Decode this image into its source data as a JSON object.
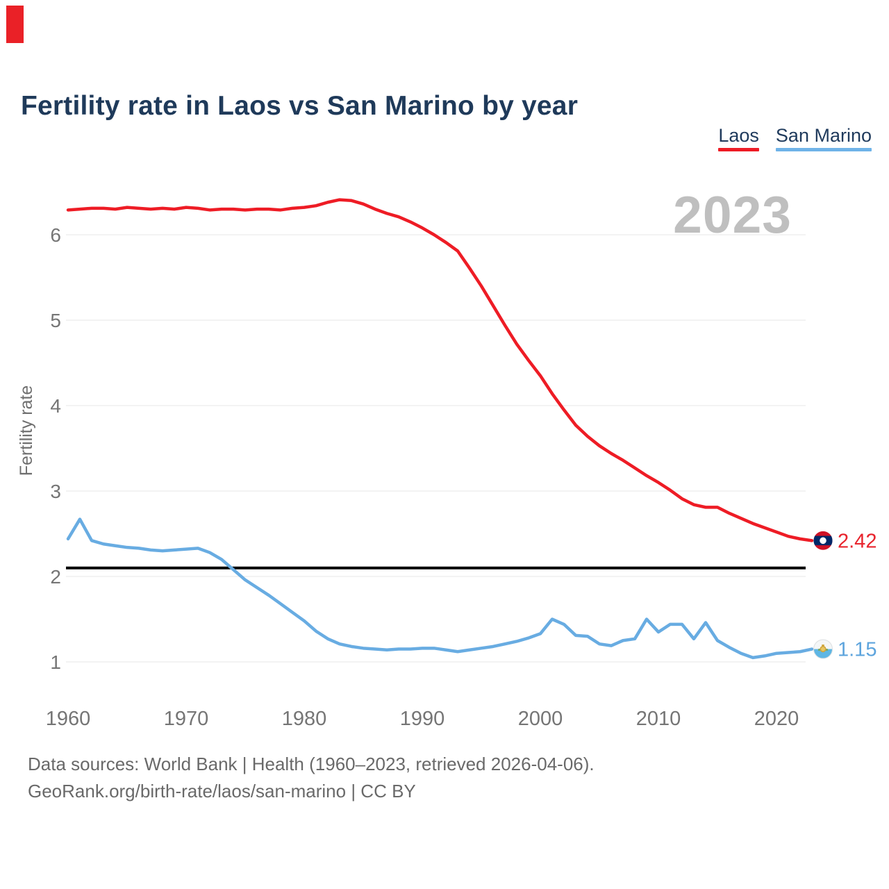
{
  "page": {
    "title": "Fertility rate in Laos vs San Marino by year",
    "watermark_year": "2023",
    "marker_color": "#ea2127"
  },
  "legend": {
    "items": [
      {
        "label": "Laos",
        "color": "#ee1c25"
      },
      {
        "label": "San Marino",
        "color": "#6fb3e8"
      }
    ]
  },
  "footer": {
    "line1": "Data sources: World Bank | Health (1960–2023, retrieved 2026-04-06).",
    "line2": "GeoRank.org/birth-rate/laos/san-marino | CC BY"
  },
  "chart_data": {
    "type": "line",
    "title": "Fertility rate in Laos vs San Marino by year",
    "ylabel": "Fertility rate",
    "xlabel": "",
    "x": [
      1960,
      1961,
      1962,
      1963,
      1964,
      1965,
      1966,
      1967,
      1968,
      1969,
      1970,
      1971,
      1972,
      1973,
      1974,
      1975,
      1976,
      1977,
      1978,
      1979,
      1980,
      1981,
      1982,
      1983,
      1984,
      1985,
      1986,
      1987,
      1988,
      1989,
      1990,
      1991,
      1992,
      1993,
      1994,
      1995,
      1996,
      1997,
      1998,
      1999,
      2000,
      2001,
      2002,
      2003,
      2004,
      2005,
      2006,
      2007,
      2008,
      2009,
      2010,
      2011,
      2012,
      2013,
      2014,
      2015,
      2016,
      2017,
      2018,
      2019,
      2020,
      2021,
      2022,
      2023
    ],
    "series": [
      {
        "name": "Laos",
        "color": "#ee1c25",
        "label_color": "#e8242d",
        "end_label": "2.42",
        "values": [
          6.29,
          6.3,
          6.31,
          6.31,
          6.3,
          6.32,
          6.31,
          6.3,
          6.31,
          6.3,
          6.32,
          6.31,
          6.29,
          6.3,
          6.3,
          6.29,
          6.3,
          6.3,
          6.29,
          6.31,
          6.32,
          6.34,
          6.38,
          6.41,
          6.4,
          6.36,
          6.3,
          6.25,
          6.21,
          6.15,
          6.08,
          6.0,
          5.91,
          5.81,
          5.61,
          5.4,
          5.17,
          4.94,
          4.72,
          4.53,
          4.35,
          4.14,
          3.95,
          3.77,
          3.64,
          3.53,
          3.44,
          3.36,
          3.27,
          3.18,
          3.1,
          3.01,
          2.91,
          2.84,
          2.81,
          2.81,
          2.74,
          2.68,
          2.62,
          2.57,
          2.52,
          2.47,
          2.44,
          2.42
        ]
      },
      {
        "name": "San Marino",
        "color": "#68ace2",
        "label_color": "#5da4dd",
        "end_label": "1.15",
        "values": [
          2.44,
          2.67,
          2.42,
          2.38,
          2.36,
          2.34,
          2.33,
          2.31,
          2.3,
          2.31,
          2.32,
          2.33,
          2.28,
          2.2,
          2.08,
          1.96,
          1.87,
          1.78,
          1.68,
          1.58,
          1.48,
          1.36,
          1.27,
          1.21,
          1.18,
          1.16,
          1.15,
          1.14,
          1.15,
          1.15,
          1.16,
          1.16,
          1.14,
          1.12,
          1.14,
          1.16,
          1.18,
          1.21,
          1.24,
          1.28,
          1.33,
          1.5,
          1.44,
          1.31,
          1.3,
          1.21,
          1.19,
          1.25,
          1.27,
          1.5,
          1.35,
          1.44,
          1.44,
          1.27,
          1.46,
          1.25,
          1.17,
          1.1,
          1.05,
          1.07,
          1.1,
          1.11,
          1.12,
          1.15
        ]
      }
    ],
    "yticks": [
      1,
      2,
      3,
      4,
      5,
      6
    ],
    "xticks": [
      1960,
      1970,
      1980,
      1990,
      2000,
      2010,
      2020
    ],
    "ylim": [
      0.85,
      6.6
    ],
    "xlim": [
      1960,
      2023
    ],
    "grid": "horizontal",
    "legend_position": "top-right",
    "reference_line": {
      "value": 2.1,
      "color": "#000000"
    },
    "tick_color": "#757575",
    "grid_color": "#ececec"
  }
}
